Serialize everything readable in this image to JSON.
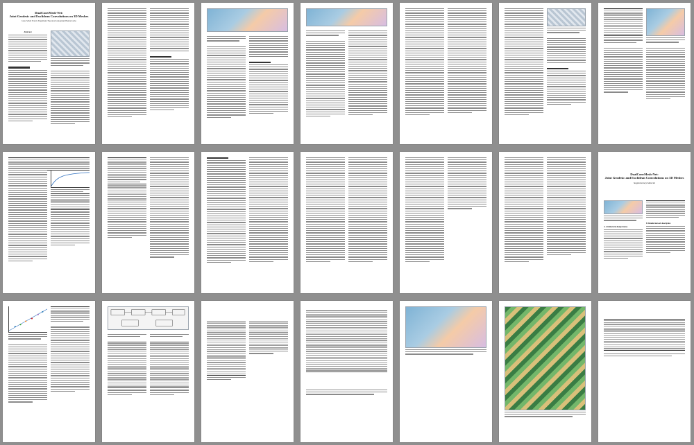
{
  "document": {
    "title_line1": "DualConvMesh-Net:",
    "title_line2": "Joint Geodesic and Euclidean Convolutions on 3D Meshes",
    "authors": "Jonas Schult   Francis Engelmann   Theodora Kontogianni   Bastian Leibe",
    "supplementary_label": "Supplementary Material",
    "abstract_heading": "Abstract",
    "section_a": "A. Architectural design choices",
    "section_b": "B. Detailed network description"
  }
}
